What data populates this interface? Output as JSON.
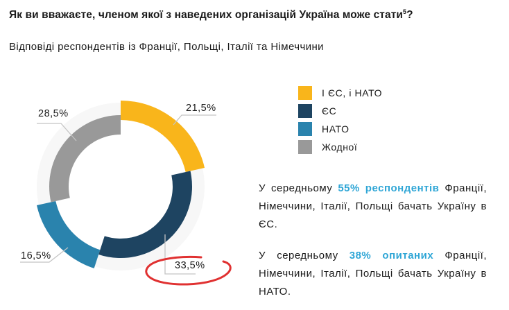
{
  "title": "Як ви вважаєте, членом якої з наведених організацій Україна може стати",
  "title_footnote": "5",
  "title_end": "?",
  "subtitle": "Відповіді респондентів із Франції, Польщі, Італії та Німеччини",
  "chart_data": {
    "type": "pie",
    "variant": "donut",
    "categories": [
      "І ЄС, і НАТО",
      "ЄС",
      "НАТО",
      "Жодної"
    ],
    "values": [
      21.5,
      33.5,
      16.5,
      28.5
    ],
    "value_labels": [
      "21,5%",
      "33,5%",
      "16,5%",
      "28,5%"
    ],
    "colors": [
      "#f9b51b",
      "#1e4461",
      "#2a83ad",
      "#999999"
    ],
    "legend_position": "right",
    "highlighted": "33,5%",
    "highlight_color": "#e03131"
  },
  "notes": [
    {
      "pre": "У середньому ",
      "hl": "55% респондентів",
      "post": " Франції, Німеччини, Італії, Польщі ба­чать Україну в ЄС."
    },
    {
      "pre": "У середньому ",
      "hl": "38% опитаних",
      "post": " Франції, Німеччини, Італії, Польщі бачать Україну в НАТО."
    }
  ]
}
